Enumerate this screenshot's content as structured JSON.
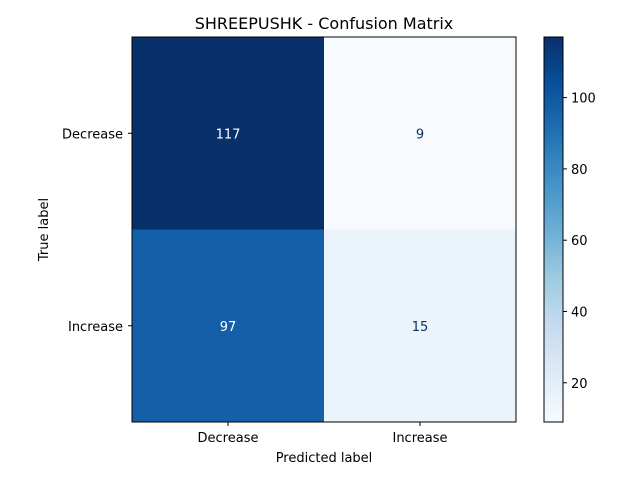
{
  "chart_data": {
    "type": "heatmap",
    "title": "SHREEPUSHK - Confusion Matrix",
    "xlabel": "Predicted label",
    "ylabel": "True label",
    "x_categories": [
      "Decrease",
      "Increase"
    ],
    "y_categories": [
      "Decrease",
      "Increase"
    ],
    "values": [
      [
        117,
        9
      ],
      [
        97,
        15
      ]
    ],
    "colormap": "Blues",
    "colorbar": {
      "min": 9,
      "max": 117,
      "ticks": [
        20,
        40,
        60,
        80,
        100
      ]
    },
    "grid": false
  }
}
